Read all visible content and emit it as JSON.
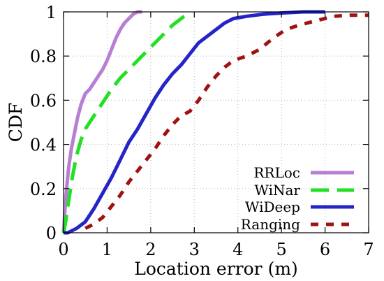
{
  "chart_data": {
    "type": "line",
    "xlabel": "Location error (m)",
    "ylabel": "CDF",
    "xlim": [
      0,
      7
    ],
    "ylim": [
      0,
      1
    ],
    "x_ticks": [
      0,
      1,
      2,
      3,
      4,
      5,
      6,
      7
    ],
    "y_ticks": [
      0,
      0.2,
      0.4,
      0.6,
      0.8,
      1
    ],
    "x_tick_labels": [
      "0",
      "1",
      "2",
      "3",
      "4",
      "5",
      "6",
      "7"
    ],
    "y_tick_labels": [
      "0",
      "0.2",
      "0.4",
      "0.6",
      "0.8",
      "1"
    ],
    "grid": true,
    "legend_position": "bottom-right",
    "series": [
      {
        "name": "RRLoc",
        "color": "#b77fd3",
        "dash": "solid",
        "x": [
          0.0,
          0.03,
          0.07,
          0.12,
          0.18,
          0.25,
          0.32,
          0.4,
          0.5,
          0.6,
          0.7,
          0.8,
          0.9,
          1.0,
          1.1,
          1.2,
          1.3,
          1.4,
          1.5,
          1.6,
          1.7,
          1.8
        ],
        "y": [
          0.0,
          0.1,
          0.2,
          0.3,
          0.38,
          0.45,
          0.52,
          0.58,
          0.63,
          0.65,
          0.68,
          0.71,
          0.74,
          0.78,
          0.83,
          0.88,
          0.92,
          0.95,
          0.97,
          0.99,
          1.0,
          1.0
        ]
      },
      {
        "name": "WiNar",
        "color": "#22e022",
        "dash": "long-dash",
        "x": [
          0.0,
          0.05,
          0.1,
          0.2,
          0.3,
          0.4,
          0.5,
          0.7,
          0.9,
          1.1,
          1.3,
          1.5,
          1.7,
          1.9,
          2.1,
          2.3,
          2.5,
          2.7,
          2.9
        ],
        "y": [
          0.0,
          0.05,
          0.12,
          0.25,
          0.35,
          0.42,
          0.47,
          0.53,
          0.59,
          0.65,
          0.7,
          0.74,
          0.78,
          0.82,
          0.86,
          0.9,
          0.94,
          0.97,
          1.0
        ]
      },
      {
        "name": "WiDeep",
        "color": "#2424c8",
        "dash": "solid",
        "x": [
          0.0,
          0.1,
          0.3,
          0.5,
          0.7,
          0.9,
          1.1,
          1.3,
          1.5,
          1.7,
          1.9,
          2.1,
          2.3,
          2.5,
          2.7,
          2.9,
          3.1,
          3.3,
          3.5,
          3.7,
          3.9,
          4.2,
          4.6,
          5.0,
          5.5,
          6.0
        ],
        "y": [
          0.0,
          0.0,
          0.02,
          0.05,
          0.11,
          0.18,
          0.25,
          0.33,
          0.41,
          0.47,
          0.54,
          0.61,
          0.67,
          0.72,
          0.76,
          0.81,
          0.86,
          0.89,
          0.92,
          0.95,
          0.97,
          0.98,
          0.99,
          0.995,
          1.0,
          1.0
        ]
      },
      {
        "name": "Ranging",
        "color": "#a01212",
        "dash": "short-dash",
        "x": [
          0.5,
          0.7,
          0.9,
          1.1,
          1.3,
          1.5,
          1.7,
          1.9,
          2.1,
          2.3,
          2.5,
          2.7,
          2.9,
          3.1,
          3.3,
          3.5,
          3.7,
          3.9,
          4.2,
          4.5,
          4.8,
          5.1,
          5.4,
          5.8,
          6.2,
          6.6,
          7.0
        ],
        "y": [
          0.02,
          0.04,
          0.07,
          0.12,
          0.17,
          0.23,
          0.28,
          0.33,
          0.38,
          0.44,
          0.49,
          0.53,
          0.55,
          0.6,
          0.66,
          0.71,
          0.75,
          0.78,
          0.8,
          0.83,
          0.88,
          0.92,
          0.94,
          0.96,
          0.98,
          0.985,
          0.985
        ]
      }
    ]
  }
}
